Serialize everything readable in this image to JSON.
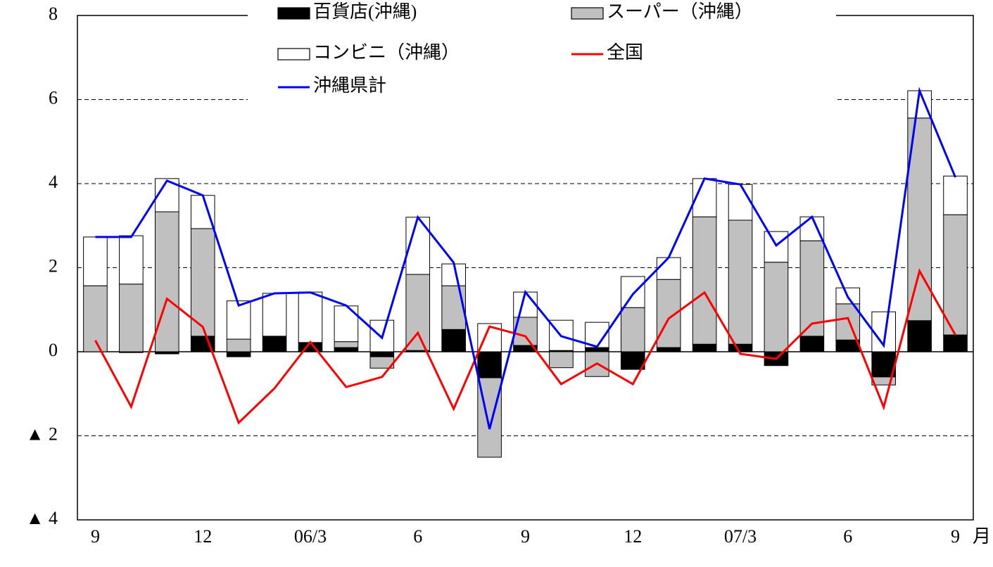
{
  "chart_data": {
    "type": "bar",
    "stacked": true,
    "categories": [
      "9",
      null,
      null,
      "12",
      null,
      null,
      "06/3",
      null,
      null,
      "6",
      null,
      null,
      "9",
      null,
      null,
      "12",
      null,
      null,
      "07/3",
      null,
      null,
      "6",
      null,
      null,
      "9"
    ],
    "x_label": "月",
    "series": [
      {
        "name": "百貨店(沖縄)",
        "type": "bar",
        "color": "#000000",
        "values": [
          0,
          -0.02,
          -0.05,
          0.37,
          -0.12,
          0.37,
          0.22,
          0.1,
          -0.12,
          0.03,
          0.53,
          -0.62,
          0.15,
          0.03,
          0.1,
          -0.42,
          0.1,
          0.18,
          0.18,
          -0.33,
          0.37,
          0.28,
          -0.6,
          0.74,
          0.4
        ]
      },
      {
        "name": "スーパー（沖縄）",
        "type": "bar",
        "color": "#c0c0c0",
        "values": [
          1.57,
          1.61,
          3.33,
          2.56,
          0.3,
          0,
          0,
          0.14,
          -0.27,
          1.81,
          1.04,
          -1.89,
          0.67,
          -0.38,
          -0.59,
          1.05,
          1.62,
          3.03,
          2.95,
          2.13,
          2.27,
          0.86,
          -0.19,
          4.82,
          2.86
        ]
      },
      {
        "name": "コンビニ（沖縄）",
        "type": "bar",
        "color": "#ffffff",
        "values": [
          1.16,
          1.15,
          0.79,
          0.79,
          0.91,
          1.02,
          1.2,
          0.85,
          0.75,
          1.36,
          0.52,
          0.67,
          0.6,
          0.72,
          0.6,
          0.74,
          0.52,
          0.91,
          0.85,
          0.73,
          0.57,
          0.38,
          0.95,
          0.65,
          0.92
        ]
      },
      {
        "name": "全国",
        "type": "line",
        "color": "#ff0000",
        "values": [
          0.27,
          -1.31,
          1.26,
          0.59,
          -1.69,
          -0.87,
          0.23,
          -0.84,
          -0.6,
          0.45,
          -1.36,
          0.6,
          0.37,
          -0.77,
          -0.28,
          -0.77,
          0.79,
          1.41,
          -0.05,
          -0.17,
          0.67,
          0.8,
          -1.32,
          1.92,
          0.4
        ]
      },
      {
        "name": "沖縄県計",
        "type": "line",
        "color": "#0000ff",
        "values": [
          2.73,
          2.73,
          4.07,
          3.72,
          1.1,
          1.39,
          1.41,
          1.1,
          0.33,
          3.2,
          2.12,
          -1.84,
          1.42,
          0.37,
          0.12,
          1.37,
          2.24,
          4.12,
          3.98,
          2.53,
          3.21,
          1.3,
          0.15,
          6.21,
          4.15
        ]
      }
    ],
    "ylim": [
      -4,
      8
    ],
    "yticks": [
      {
        "value": -4,
        "label": "▲ 4"
      },
      {
        "value": -2,
        "label": "▲ 2"
      },
      0,
      2,
      4,
      6,
      8
    ],
    "grid": true,
    "legend": "top"
  }
}
